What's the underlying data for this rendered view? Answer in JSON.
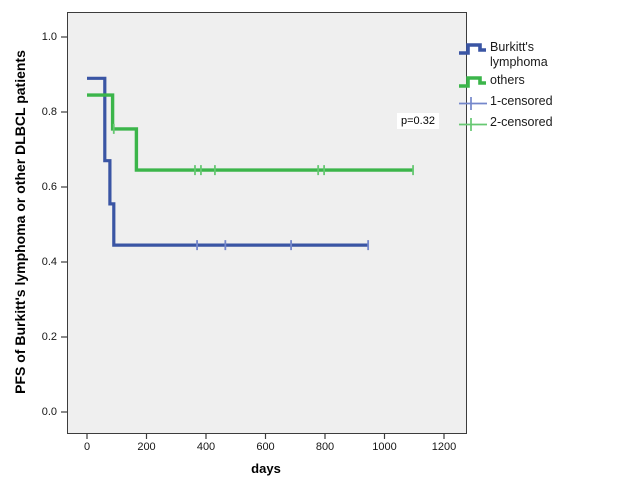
{
  "chart_data": {
    "type": "line",
    "subtype": "kaplan-meier-step",
    "title": "",
    "xlabel": "days",
    "ylabel": "PFS of Burkitt's lymphoma or other DLBCL patients",
    "x_ticks": [
      0,
      200,
      400,
      600,
      800,
      1000,
      1200
    ],
    "y_tick_labels": [
      "0.0",
      "0.2",
      "0.4",
      "0.6",
      "0.8",
      "1.0"
    ],
    "y_ticks": [
      0.0,
      0.2,
      0.4,
      0.6,
      0.8,
      1.0
    ],
    "xlim": [
      -67,
      1274
    ],
    "ylim": [
      -0.056,
      1.067
    ],
    "grid": false,
    "legend_position": "right",
    "plot_bg": "#efefef",
    "axis_color": "#3c3c3c",
    "annotation": {
      "text": "p=0.32",
      "x_day": 1050,
      "y_value": 0.77
    },
    "series": [
      {
        "name": "Burkitt's lymphoma",
        "color": "#3a55a4",
        "censor_color": "#7487cb",
        "line_width": 3.2,
        "steps": [
          [
            0,
            0.89
          ],
          [
            60,
            0.89
          ],
          [
            60,
            0.67
          ],
          [
            77,
            0.67
          ],
          [
            77,
            0.555
          ],
          [
            90,
            0.555
          ],
          [
            90,
            0.445
          ],
          [
            945,
            0.445
          ]
        ],
        "censored": [
          [
            370,
            0.445
          ],
          [
            465,
            0.445
          ],
          [
            686,
            0.445
          ],
          [
            945,
            0.445
          ]
        ]
      },
      {
        "name": "others",
        "color": "#3bb54a",
        "censor_color": "#66c872",
        "line_width": 3.4,
        "steps": [
          [
            0,
            0.845
          ],
          [
            86,
            0.845
          ],
          [
            86,
            0.755
          ],
          [
            166,
            0.755
          ],
          [
            166,
            0.645
          ],
          [
            1096,
            0.645
          ]
        ],
        "censored": [
          [
            90,
            0.755
          ],
          [
            363,
            0.645
          ],
          [
            383,
            0.645
          ],
          [
            430,
            0.645
          ],
          [
            777,
            0.645
          ],
          [
            797,
            0.645
          ],
          [
            1096,
            0.645
          ]
        ]
      }
    ]
  },
  "legend": {
    "items": [
      {
        "label": "Burkitt's lymphoma",
        "icon": "step-line-icon",
        "color": "#3a55a4"
      },
      {
        "label": "others",
        "icon": "step-line-icon",
        "color": "#3bb54a"
      },
      {
        "label": "1-censored",
        "icon": "plus-line-icon",
        "color": "#7487cb"
      },
      {
        "label": "2-censored",
        "icon": "plus-line-icon",
        "color": "#66c872"
      }
    ]
  }
}
